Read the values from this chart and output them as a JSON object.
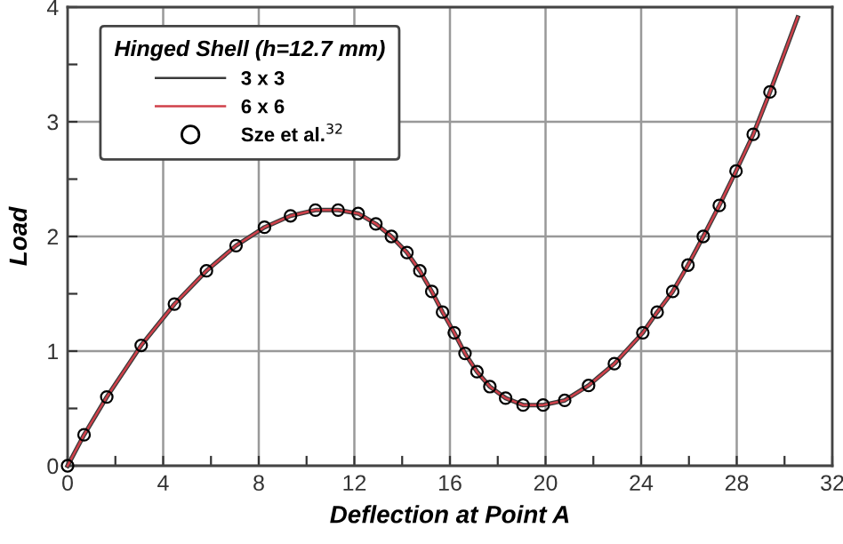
{
  "chart_data": {
    "type": "line",
    "xlabel": "Deflection at Point A",
    "ylabel": "Load",
    "legend_title": "Hinged Shell (h=12.7 mm)",
    "series": [
      {
        "name": "3 x 3",
        "color": "#3a3a3a",
        "marker": "none",
        "line_style": "solid",
        "x": [
          0,
          0.69,
          1.64,
          3.08,
          4.47,
          5.81,
          7.05,
          8.24,
          9.33,
          10.37,
          11.32,
          12.16,
          12.9,
          13.55,
          14.2,
          14.74,
          15.24,
          15.69,
          16.18,
          16.63,
          17.13,
          17.67,
          18.33,
          19.06,
          19.9,
          20.8,
          21.8,
          22.88,
          24.07,
          24.67,
          25.32,
          25.96,
          26.6,
          27.27,
          27.97,
          28.69,
          29.39,
          30.55
        ],
        "values": [
          0,
          0.27,
          0.6,
          1.05,
          1.41,
          1.7,
          1.92,
          2.08,
          2.18,
          2.23,
          2.23,
          2.2,
          2.11,
          2.0,
          1.86,
          1.7,
          1.52,
          1.34,
          1.16,
          0.98,
          0.82,
          0.69,
          0.59,
          0.53,
          0.53,
          0.57,
          0.7,
          0.89,
          1.16,
          1.34,
          1.52,
          1.75,
          2.0,
          2.27,
          2.57,
          2.89,
          3.26,
          3.91
        ]
      },
      {
        "name": "6 x 6",
        "color": "#d0404a",
        "marker": "none",
        "line_style": "solid",
        "x": [
          0,
          0.69,
          1.64,
          3.08,
          4.47,
          5.81,
          7.05,
          8.24,
          9.33,
          10.37,
          11.32,
          12.16,
          12.9,
          13.55,
          14.2,
          14.74,
          15.24,
          15.69,
          16.18,
          16.63,
          17.13,
          17.67,
          18.33,
          19.06,
          19.9,
          20.8,
          21.8,
          22.88,
          24.07,
          24.67,
          25.32,
          25.96,
          26.6,
          27.27,
          27.97,
          28.69,
          29.39,
          30.55
        ],
        "values": [
          0,
          0.27,
          0.6,
          1.05,
          1.41,
          1.7,
          1.92,
          2.08,
          2.18,
          2.23,
          2.23,
          2.2,
          2.11,
          2.0,
          1.86,
          1.7,
          1.52,
          1.34,
          1.16,
          0.98,
          0.82,
          0.69,
          0.59,
          0.53,
          0.53,
          0.57,
          0.7,
          0.89,
          1.16,
          1.34,
          1.52,
          1.75,
          2.0,
          2.27,
          2.57,
          2.89,
          3.26,
          3.91
        ]
      },
      {
        "name": "Sze et al.$^{32}$",
        "type": "scatter",
        "color": "#000000",
        "marker": "circle",
        "x": [
          0,
          0.69,
          1.64,
          3.08,
          4.47,
          5.81,
          7.05,
          8.24,
          9.33,
          10.37,
          11.32,
          12.16,
          12.9,
          13.55,
          14.2,
          14.74,
          15.24,
          15.69,
          16.18,
          16.63,
          17.13,
          17.67,
          18.33,
          19.06,
          19.9,
          20.8,
          21.8,
          22.88,
          24.07,
          24.67,
          25.32,
          25.96,
          26.6,
          27.27,
          27.97,
          28.69,
          29.39
        ],
        "values": [
          0,
          0.27,
          0.6,
          1.05,
          1.41,
          1.7,
          1.92,
          2.08,
          2.18,
          2.23,
          2.23,
          2.2,
          2.11,
          2.0,
          1.86,
          1.7,
          1.52,
          1.34,
          1.16,
          0.98,
          0.82,
          0.69,
          0.59,
          0.53,
          0.53,
          0.57,
          0.7,
          0.89,
          1.16,
          1.34,
          1.52,
          1.75,
          2.0,
          2.27,
          2.57,
          2.89,
          3.26
        ]
      }
    ],
    "xlim": [
      0,
      32
    ],
    "ylim": [
      0,
      4
    ],
    "xticks": [
      0,
      {
        "value": 2,
        "label": null
      },
      4,
      {
        "value": 6,
        "label": null
      },
      8,
      {
        "value": 10,
        "label": null
      },
      12,
      {
        "value": 14,
        "label": null
      },
      16,
      {
        "value": 18,
        "label": null
      },
      20,
      {
        "value": 22,
        "label": null
      },
      24,
      {
        "value": 26,
        "label": null
      },
      28,
      {
        "value": 30,
        "label": null
      },
      32
    ],
    "yticks": [
      0,
      {
        "value": 0.5,
        "label": null
      },
      1,
      {
        "value": 1.5,
        "label": null
      },
      2,
      {
        "value": 2.5,
        "label": null
      },
      3,
      {
        "value": 3.5,
        "label": null
      },
      4
    ],
    "grid": true,
    "legend": "top left"
  }
}
